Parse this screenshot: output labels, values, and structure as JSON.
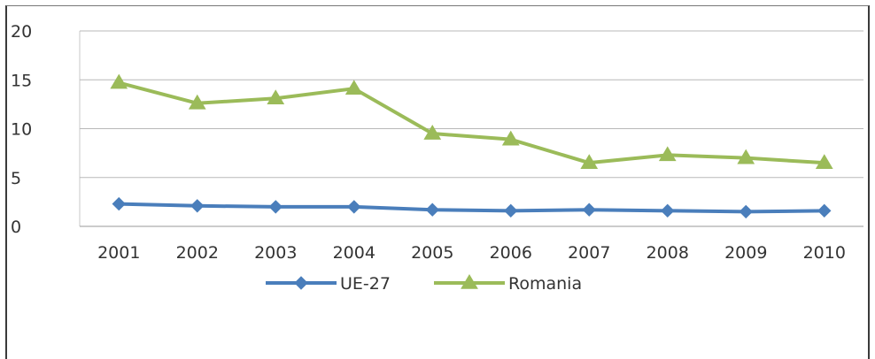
{
  "caption": "",
  "chart_data": {
    "type": "line",
    "title": "",
    "xlabel": "",
    "ylabel": "",
    "categories": [
      "2001",
      "2002",
      "2003",
      "2004",
      "2005",
      "2006",
      "2007",
      "2008",
      "2009",
      "2010"
    ],
    "ylim": [
      0,
      20
    ],
    "yticks": [
      0,
      5,
      10,
      15,
      20
    ],
    "grid": "horizontal",
    "legend_position": "bottom",
    "series": [
      {
        "name": "UE-27",
        "marker": "diamond",
        "color": "#4a7ebb",
        "values": [
          2.3,
          2.1,
          2.0,
          2.0,
          1.7,
          1.6,
          1.7,
          1.6,
          1.5,
          1.6
        ]
      },
      {
        "name": "Romania",
        "marker": "triangle",
        "color": "#9bbb59",
        "values": [
          14.7,
          12.6,
          13.1,
          14.1,
          9.5,
          8.9,
          6.5,
          7.3,
          7.0,
          6.5
        ]
      }
    ]
  }
}
